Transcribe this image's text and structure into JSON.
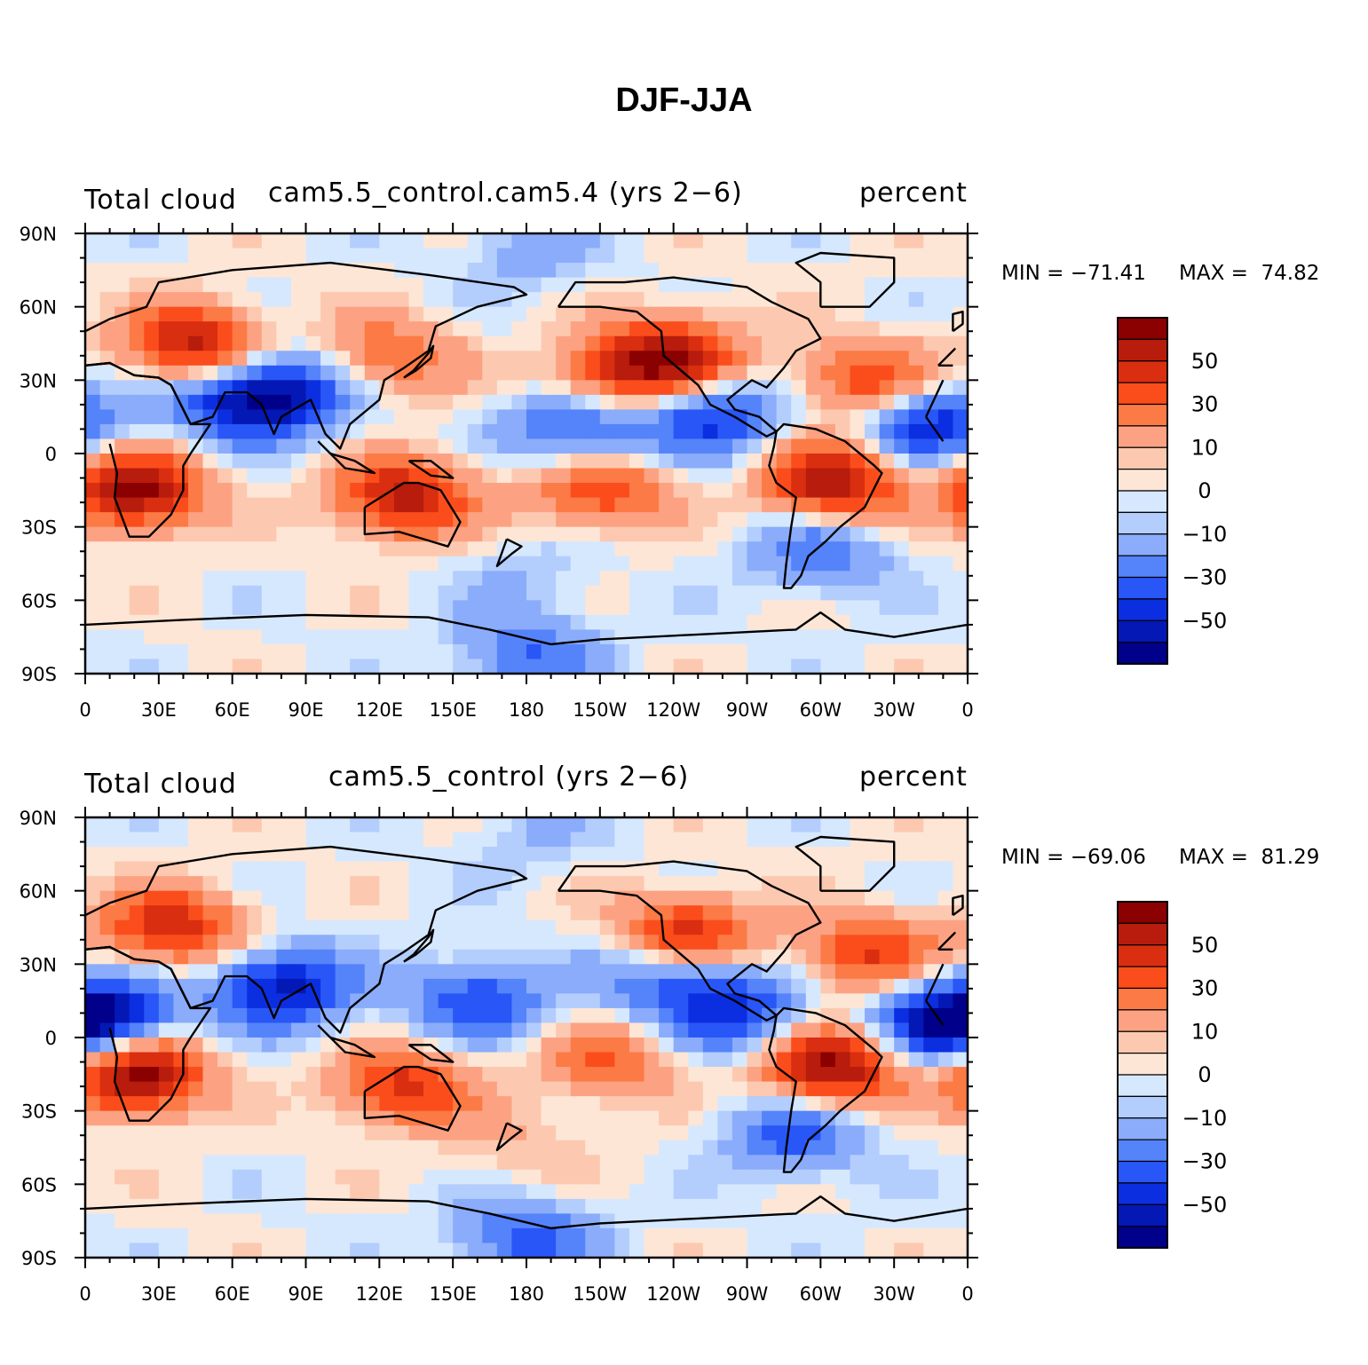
{
  "title": "DJF-JJA",
  "chart_data": [
    {
      "type": "heatmap",
      "variable": "Total cloud",
      "subtitle": "cam5.5_control.cam5.4 (yrs 2−6)",
      "units": "percent",
      "min_label": "MIN = −71.41",
      "max_label": "MAX =  74.82",
      "min": -71.41,
      "max": 74.82,
      "xlim": [
        0,
        360
      ],
      "ylim": [
        -90,
        90
      ],
      "x_ticks": [
        "0",
        "30E",
        "60E",
        "90E",
        "120E",
        "150E",
        "180",
        "150W",
        "120W",
        "90W",
        "60W",
        "30W",
        "0"
      ],
      "y_ticks": [
        "90N",
        "60N",
        "30N",
        "0",
        "30S",
        "60S",
        "90S"
      ],
      "colorbar_levels": [
        -60,
        -50,
        -40,
        -30,
        -20,
        -10,
        -5,
        0,
        5,
        10,
        20,
        30,
        40,
        50,
        60
      ],
      "colorbar_labels": [
        "50",
        "30",
        "10",
        "0",
        "−10",
        "−30",
        "−50"
      ],
      "colorbar_colors": [
        "#8b0000",
        "#b71c0c",
        "#d92e10",
        "#fb4d1c",
        "#fc7a45",
        "#fca283",
        "#fcc9b0",
        "#fde6d6",
        "#d6e8fe",
        "#b3cdfd",
        "#8aacfb",
        "#5583fa",
        "#2956f7",
        "#0b2fe0",
        "#0418b5",
        "#00008b"
      ],
      "anomalies": [
        {
          "lon": 20,
          "lat": -15,
          "value": 65
        },
        {
          "lon": 45,
          "lat": 45,
          "value": 55
        },
        {
          "lon": 60,
          "lat": 20,
          "value": -35
        },
        {
          "lon": 80,
          "lat": 25,
          "value": -50
        },
        {
          "lon": 125,
          "lat": 40,
          "value": 30
        },
        {
          "lon": 130,
          "lat": -18,
          "value": 55
        },
        {
          "lon": 200,
          "lat": 10,
          "value": -40
        },
        {
          "lon": 210,
          "lat": -15,
          "value": 40
        },
        {
          "lon": 215,
          "lat": 30,
          "value": 35
        },
        {
          "lon": 240,
          "lat": 40,
          "value": 55
        },
        {
          "lon": 255,
          "lat": 15,
          "value": -45
        },
        {
          "lon": 305,
          "lat": -12,
          "value": 60
        },
        {
          "lon": 320,
          "lat": 30,
          "value": 40
        },
        {
          "lon": 345,
          "lat": 12,
          "value": -50
        },
        {
          "lon": 180,
          "lat": -50,
          "value": -10
        },
        {
          "lon": 180,
          "lat": -82,
          "value": -30
        },
        {
          "lon": 180,
          "lat": 82,
          "value": -15
        },
        {
          "lon": 300,
          "lat": -40,
          "value": -30
        }
      ]
    },
    {
      "type": "heatmap",
      "variable": "Total cloud",
      "subtitle": "cam5.5_control (yrs 2−6)",
      "units": "percent",
      "min_label": "MIN = −69.06",
      "max_label": "MAX =  81.29",
      "min": -69.06,
      "max": 81.29,
      "xlim": [
        0,
        360
      ],
      "ylim": [
        -90,
        90
      ],
      "x_ticks": [
        "0",
        "30E",
        "60E",
        "90E",
        "120E",
        "150E",
        "180",
        "150W",
        "120W",
        "90W",
        "60W",
        "30W",
        "0"
      ],
      "y_ticks": [
        "90N",
        "60N",
        "30N",
        "0",
        "30S",
        "60S",
        "90S"
      ],
      "colorbar_levels": [
        -60,
        -50,
        -40,
        -30,
        -20,
        -10,
        -5,
        0,
        5,
        10,
        20,
        30,
        40,
        50,
        60
      ],
      "colorbar_labels": [
        "50",
        "30",
        "10",
        "0",
        "−10",
        "−30",
        "−50"
      ],
      "colorbar_colors": [
        "#8b0000",
        "#b71c0c",
        "#d92e10",
        "#fb4d1c",
        "#fc7a45",
        "#fca283",
        "#fcc9b0",
        "#fde6d6",
        "#d6e8fe",
        "#b3cdfd",
        "#8aacfb",
        "#5583fa",
        "#2956f7",
        "#0b2fe0",
        "#0418b5",
        "#00008b"
      ],
      "anomalies": [
        {
          "lon": 20,
          "lat": -15,
          "value": 70
        },
        {
          "lon": 35,
          "lat": 45,
          "value": 50
        },
        {
          "lon": 10,
          "lat": 10,
          "value": -45
        },
        {
          "lon": 80,
          "lat": 20,
          "value": -55
        },
        {
          "lon": 130,
          "lat": -20,
          "value": 45
        },
        {
          "lon": 160,
          "lat": 15,
          "value": -40
        },
        {
          "lon": 215,
          "lat": -10,
          "value": 30
        },
        {
          "lon": 235,
          "lat": 25,
          "value": -35
        },
        {
          "lon": 245,
          "lat": 42,
          "value": 50
        },
        {
          "lon": 265,
          "lat": 10,
          "value": -45
        },
        {
          "lon": 305,
          "lat": -12,
          "value": 65
        },
        {
          "lon": 320,
          "lat": 35,
          "value": 40
        },
        {
          "lon": 350,
          "lat": 5,
          "value": -55
        },
        {
          "lon": 180,
          "lat": -45,
          "value": 10
        },
        {
          "lon": 180,
          "lat": -82,
          "value": -35
        },
        {
          "lon": 180,
          "lat": 82,
          "value": -10
        },
        {
          "lon": 290,
          "lat": -40,
          "value": -35
        }
      ]
    }
  ]
}
